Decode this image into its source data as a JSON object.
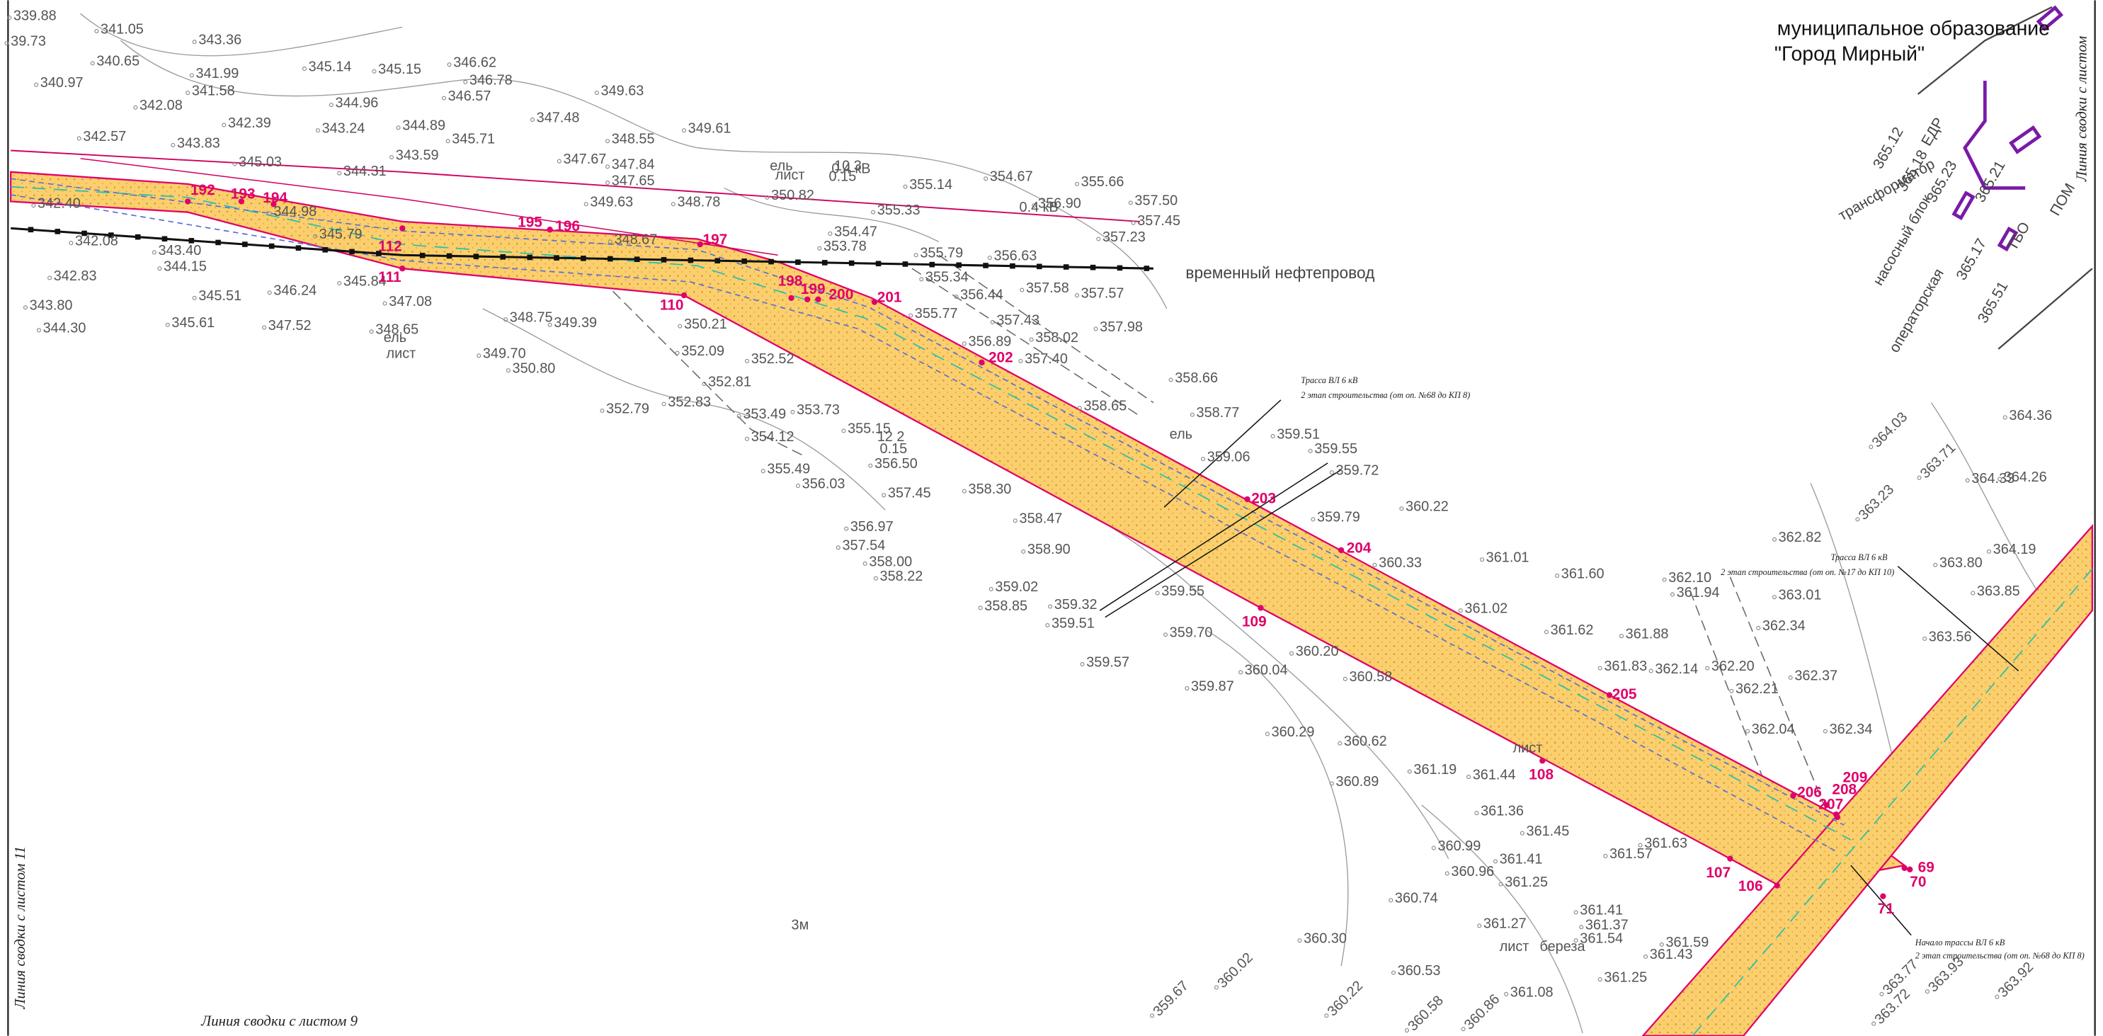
{
  "header": {
    "municipality": "муниципальное образование",
    "city": "\"Город Мирный\""
  },
  "annotations": {
    "pipeline": "временный нефтепровод",
    "sheet_9": "Линия сводки с листом 9",
    "sheet_11": "Линия сводки с листом 11",
    "sheet_right": "Линия сводки с листом",
    "route_a": {
      "title": "Трасса ВЛ 6 кВ",
      "subtitle": "2 этап строительства (от оп. №68 до КП 8)"
    },
    "route_b": {
      "title": "Трасса ВЛ 6 кВ",
      "subtitle": "2 этап строительства (от оп. №17 до КП 10)"
    },
    "route_start": {
      "title": "Начало трассы ВЛ 6 кВ",
      "subtitle": "2 этап строительства (от оп. №68 до КП 8)"
    }
  },
  "points": [
    "192",
    "193",
    "194",
    "195",
    "196",
    "197",
    "198",
    "199",
    "200",
    "201",
    "202",
    "203",
    "204",
    "205",
    "206",
    "207",
    "208",
    "209",
    "69",
    "70",
    "71",
    "106",
    "107",
    "108",
    "109",
    "110",
    "111",
    "112"
  ],
  "elevations": [
    "339.88",
    "341.05",
    "343.36",
    "39.73",
    "340.65",
    "341.99",
    "345.14",
    "345.15",
    "346.62",
    "346.78",
    "349.63",
    "340.97",
    "341.58",
    "344.96",
    "346.57",
    "347.48",
    "342.08",
    "342.39",
    "343.24",
    "344.89",
    "349.61",
    "342.57",
    "343.83",
    "345.71",
    "348.55",
    "345.03",
    "343.59",
    "347.67",
    "347.84",
    "344.31",
    "347.65",
    "355.14",
    "354.67",
    "355.66",
    "342.40",
    "344.98",
    "349.63",
    "348.78",
    "350.82",
    "355.33",
    "356.90",
    "357.50",
    "357.45",
    "345.79",
    "348.67",
    "354.47",
    "357.23",
    "343.40",
    "353.78",
    "355.79",
    "356.63",
    "342.08",
    "344.15",
    "342.83",
    "345.84",
    "355.34",
    "357.58",
    "357.57",
    "345.51",
    "346.24",
    "347.08",
    "356.44",
    "343.80",
    "345.61",
    "347.52",
    "348.75",
    "350.21",
    "355.77",
    "357.43",
    "357.98",
    "344.30",
    "348.65",
    "349.39",
    "356.89",
    "358.02",
    "349.70",
    "352.09",
    "357.40",
    "350.80",
    "352.52",
    "352.81",
    "358.66",
    "352.79",
    "352.83",
    "353.49",
    "353.73",
    "358.65",
    "358.77",
    "354.12",
    "355.15",
    "359.51",
    "359.55",
    "359.06",
    "356.50",
    "359.72",
    "355.49",
    "356.03",
    "358.30",
    "360.22",
    "357.45",
    "358.47",
    "359.79",
    "356.97",
    "357.54",
    "358.90",
    "358.00",
    "358.22",
    "360.33",
    "361.01",
    "361.60",
    "362.82",
    "359.02",
    "358.85",
    "359.32",
    "359.51",
    "359.55",
    "361.02",
    "362.10",
    "361.94",
    "363.01",
    "359.70",
    "360.20",
    "361.62",
    "361.88",
    "362.34",
    "359.57",
    "360.04",
    "361.83",
    "362.14",
    "362.20",
    "362.37",
    "359.87",
    "360.58",
    "362.21",
    "360.29",
    "360.62",
    "362.04",
    "362.34",
    "361.19",
    "361.44",
    "360.89",
    "361.36",
    "361.45",
    "361.57",
    "361.63",
    "360.99",
    "360.96",
    "361.41",
    "361.25",
    "360.74",
    "361.27",
    "361.41",
    "361.37",
    "361.54",
    "360.30",
    "361.59",
    "361.43",
    "360.53",
    "361.08",
    "361.25",
    "360.02",
    "359.67",
    "360.22",
    "360.58",
    "360.86",
    "363.77",
    "363.93",
    "363.92",
    "363.72",
    "364.03",
    "363.71",
    "363.23",
    "364.36",
    "364.33",
    "364.26",
    "363.80",
    "363.85",
    "363.56",
    "364.19"
  ],
  "features": [
    "0.4 кВ",
    "0.4 кВ",
    "ель",
    "лист",
    "10 3",
    "0.15",
    "ель",
    "лист",
    "12 2",
    "0.15",
    "ель",
    "лист",
    "лист",
    "береза",
    "3м"
  ],
  "facility_labels": [
    "трансформатор",
    "насосный блок",
    "операторская",
    "ЕДР",
    "ПОМ",
    "ТБО",
    "365.12",
    "365.18",
    "365.21",
    "365.23",
    "365.17",
    "365.51"
  ]
}
